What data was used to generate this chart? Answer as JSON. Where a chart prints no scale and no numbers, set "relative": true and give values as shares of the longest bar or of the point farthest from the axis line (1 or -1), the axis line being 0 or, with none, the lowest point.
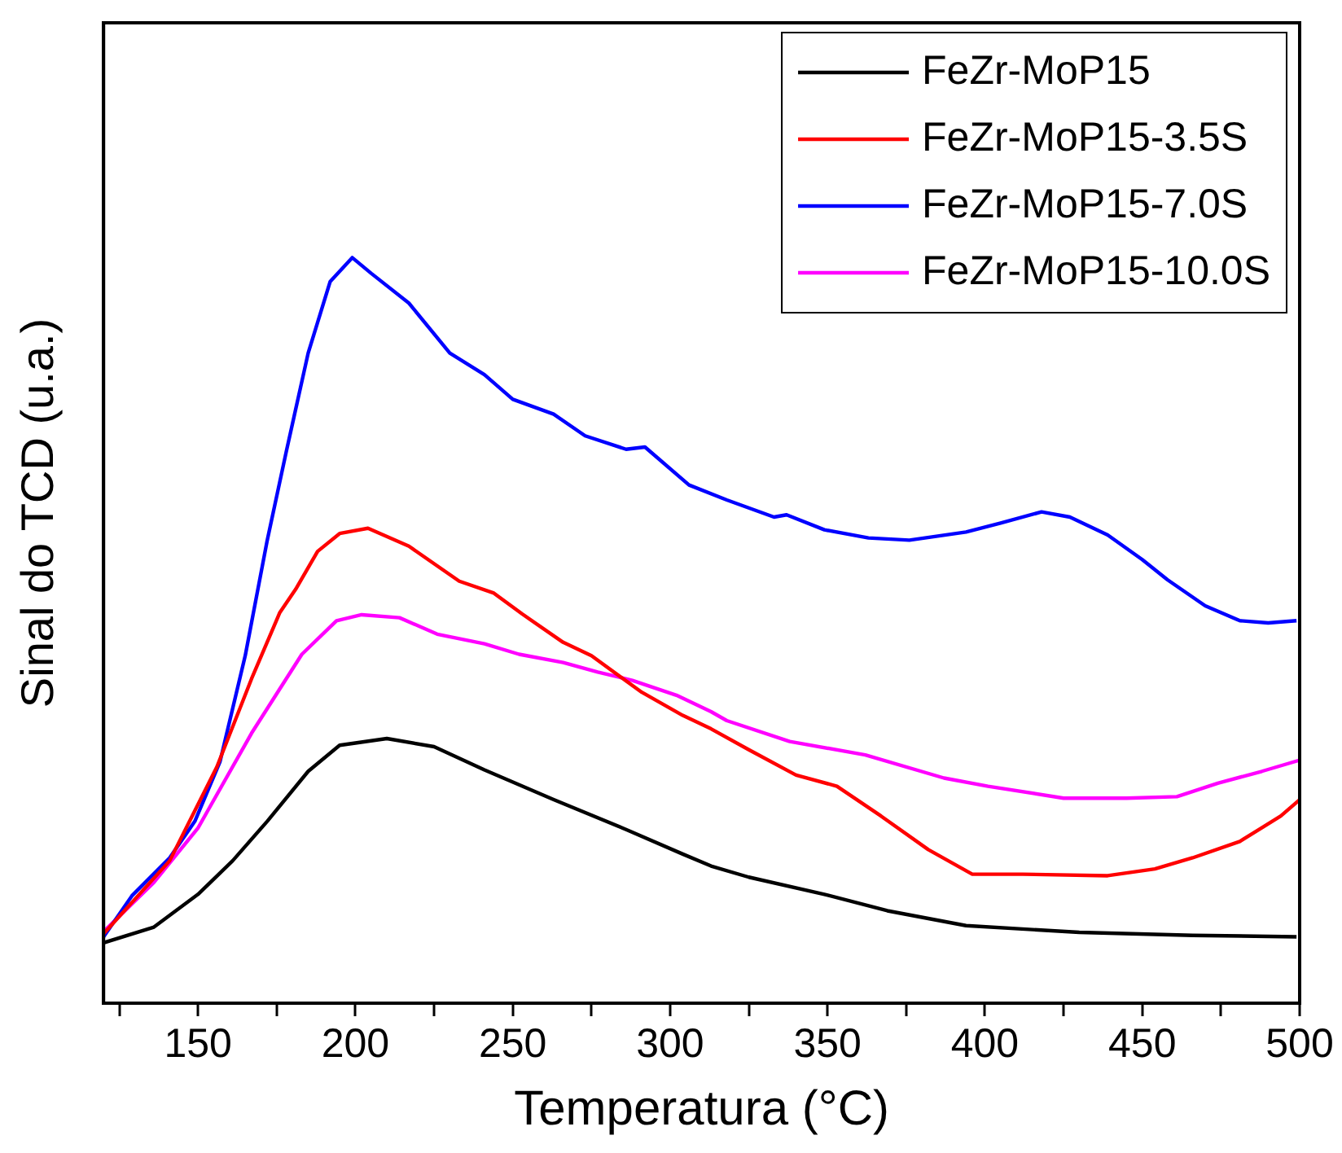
{
  "chart_data": {
    "type": "line",
    "relative": true,
    "xlabel": "Temperatura (°C)",
    "ylabel": "Sinal do TCD (u.a.)",
    "xlim": [
      120,
      500
    ],
    "xticks": [
      {
        "value": 125,
        "label": null
      },
      150,
      {
        "value": 175,
        "label": null
      },
      200,
      {
        "value": 225,
        "label": null
      },
      250,
      {
        "value": 275,
        "label": null
      },
      300,
      {
        "value": 325,
        "label": null
      },
      350,
      {
        "value": 375,
        "label": null
      },
      400,
      {
        "value": 425,
        "label": null
      },
      450,
      {
        "value": 475,
        "label": null
      },
      500
    ],
    "grid": false,
    "legend": "top right",
    "marker": "none",
    "line_style": "solid",
    "series": [
      {
        "name": "FeZr-MoP15",
        "color": "#000000",
        "x": [
          120,
          136,
          150,
          161,
          172,
          185,
          195,
          210,
          225,
          241,
          263,
          286,
          304,
          313,
          325,
          349,
          369,
          394,
          430,
          466,
          499
        ],
        "values": [
          0.081,
          0.102,
          0.146,
          0.191,
          0.244,
          0.311,
          0.346,
          0.355,
          0.344,
          0.313,
          0.273,
          0.233,
          0.2,
          0.184,
          0.169,
          0.146,
          0.124,
          0.104,
          0.095,
          0.091,
          0.089
        ]
      },
      {
        "name": "FeZr-MoP15-3.5S",
        "color": "#ff0000",
        "x": [
          120,
          141,
          156,
          167,
          176,
          181,
          188,
          195,
          204,
          217,
          233,
          244,
          253,
          266,
          275,
          291,
          304,
          313,
          325,
          340,
          353,
          367,
          382,
          396,
          412,
          439,
          454,
          466,
          481,
          494,
          500
        ],
        "values": [
          0.093,
          0.191,
          0.317,
          0.435,
          0.524,
          0.555,
          0.606,
          0.63,
          0.637,
          0.613,
          0.566,
          0.55,
          0.522,
          0.484,
          0.466,
          0.417,
          0.386,
          0.368,
          0.34,
          0.306,
          0.291,
          0.251,
          0.206,
          0.173,
          0.173,
          0.171,
          0.18,
          0.195,
          0.217,
          0.251,
          0.273
        ]
      },
      {
        "name": "FeZr-MoP15-7.0S",
        "color": "#0000ff",
        "x": [
          120,
          129,
          141,
          149,
          157,
          165,
          172,
          178,
          185,
          192,
          199,
          205,
          217,
          230,
          241,
          250,
          263,
          273,
          286,
          292,
          306,
          318,
          333,
          337,
          349,
          363,
          376,
          394,
          405,
          418,
          427,
          439,
          450,
          458,
          470,
          481,
          490,
          499
        ],
        "values": [
          0.089,
          0.144,
          0.195,
          0.244,
          0.324,
          0.466,
          0.621,
          0.739,
          0.872,
          0.968,
          1,
          0.979,
          0.939,
          0.872,
          0.843,
          0.81,
          0.79,
          0.761,
          0.743,
          0.746,
          0.695,
          0.675,
          0.652,
          0.655,
          0.635,
          0.624,
          0.621,
          0.632,
          0.644,
          0.659,
          0.652,
          0.628,
          0.595,
          0.568,
          0.533,
          0.513,
          0.51,
          0.513
        ]
      },
      {
        "name": "FeZr-MoP15-10.0S",
        "color": "#ff00ff",
        "x": [
          120,
          136,
          150,
          167,
          183,
          194,
          202,
          214,
          226,
          241,
          252,
          266,
          277,
          288,
          302,
          313,
          318,
          338,
          362,
          387,
          401,
          425,
          445,
          461,
          474,
          488,
          500
        ],
        "values": [
          0.096,
          0.162,
          0.235,
          0.362,
          0.468,
          0.513,
          0.521,
          0.517,
          0.495,
          0.482,
          0.468,
          0.457,
          0.444,
          0.433,
          0.413,
          0.391,
          0.379,
          0.351,
          0.333,
          0.302,
          0.291,
          0.275,
          0.275,
          0.277,
          0.295,
          0.311,
          0.326
        ]
      }
    ]
  }
}
